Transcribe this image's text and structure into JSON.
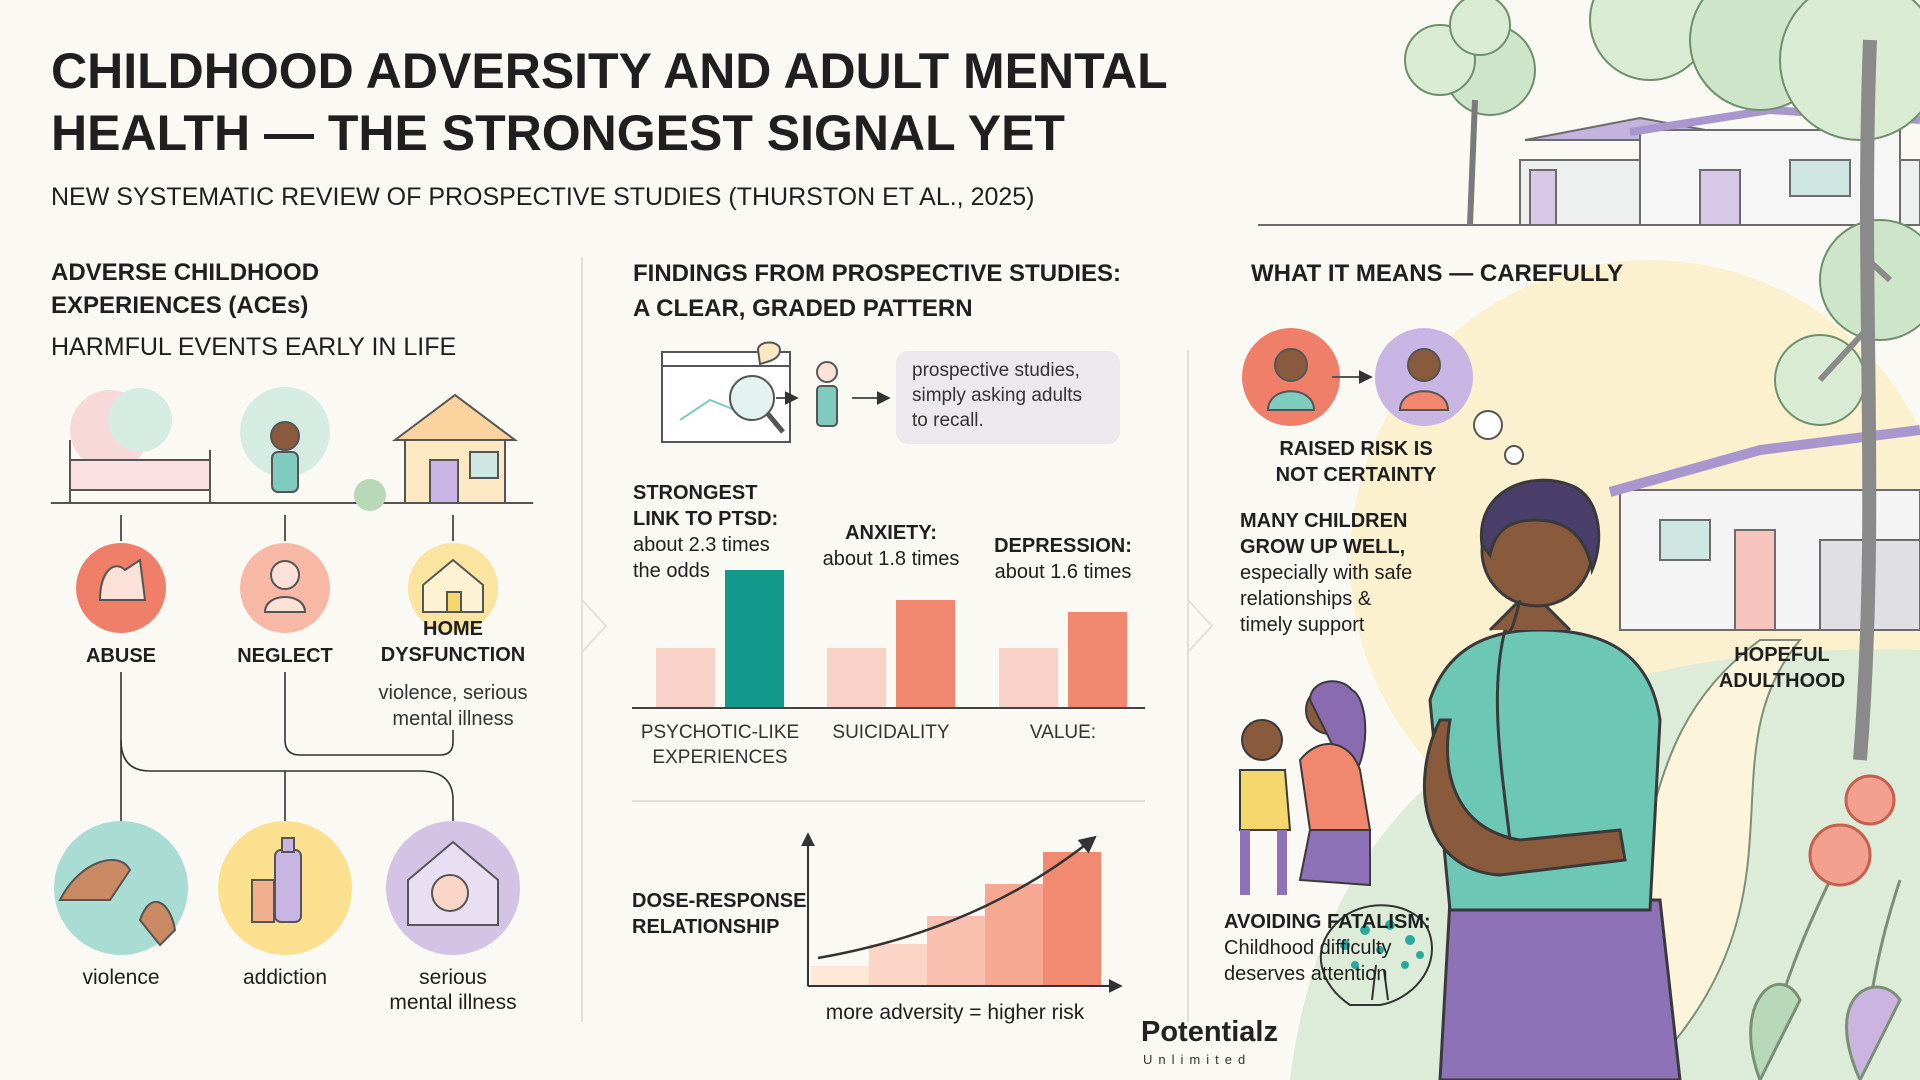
{
  "header": {
    "title": [
      "CHILDHOOD ADVERSITY AND ADULT MENTAL",
      "HEALTH — THE STRONGEST SIGNAL YET"
    ],
    "subtitle": "NEW SYSTEMATIC REVIEW OF PROSPECTIVE STUDIES (THURSTON ET AL., 2025)"
  },
  "aces": {
    "heading": [
      "ADVERSE CHILDHOOD",
      "EXPERIENCES (ACEs)"
    ],
    "subheading": "HARMFUL EVENTS EARLY IN LIFE",
    "types": [
      [
        "ABUSE"
      ],
      [
        "NEGLECT"
      ],
      [
        "HOME",
        "DYSFUNCTION"
      ]
    ],
    "home_note": [
      "violence, serious",
      "mental illness"
    ],
    "outcomes": [
      [
        "violence"
      ],
      [
        "addiction"
      ],
      [
        "serious",
        "mental illness"
      ]
    ]
  },
  "findings": {
    "heading": [
      "FINDINGS FROM PROSPECTIVE STUDIES:",
      "A CLEAR, GRADED PATTERN"
    ],
    "method_note": [
      "prospective studies,",
      "simply asking adults",
      "to recall."
    ],
    "annotations": [
      {
        "title": [
          "STRONGEST",
          "LINK TO PTSD:"
        ],
        "text": [
          "about 2.3 times",
          "the odds"
        ]
      },
      {
        "title": [
          "ANXIETY:"
        ],
        "text": [
          "about 1.8 times"
        ]
      },
      {
        "title": [
          "DEPRESSION:"
        ],
        "text": [
          "about 1.6 times"
        ]
      }
    ],
    "dose_label": [
      "DOSE-RESPONSE",
      "RELATIONSHIP"
    ],
    "dose_caption": "more adversity = higher risk"
  },
  "chart_data": {
    "type": "bar",
    "categories": [
      [
        "PSYCHOTIC-LIKE",
        "EXPERIENCES"
      ],
      [
        "SUICIDALITY"
      ],
      [
        "VALUE:"
      ]
    ],
    "series": [
      {
        "color": "#f9d3c8",
        "values": [
          1,
          1,
          1
        ]
      },
      {
        "colors": [
          "#12998c",
          "#f0876e",
          "#f0876e"
        ],
        "values": [
          2.3,
          1.8,
          1.6
        ]
      }
    ]
  },
  "meaning": {
    "heading": "WHAT IT MEANS — CAREFULLY",
    "risk_note": [
      "RAISED RISK IS",
      "NOT CERTAINTY"
    ],
    "growth_title": [
      "MANY CHILDREN",
      "GROW UP WELL,"
    ],
    "growth_text": [
      "especially with safe",
      "relationships &",
      "timely support"
    ],
    "hope": [
      "HOPEFUL",
      "ADULTHOOD"
    ],
    "fatalism_title": "AVOIDING FATALISM:",
    "fatalism_text": [
      "Childhood difficulty",
      "deserves attention"
    ]
  },
  "logo": {
    "name": "Potentialz",
    "tagline": "Unlimited"
  }
}
